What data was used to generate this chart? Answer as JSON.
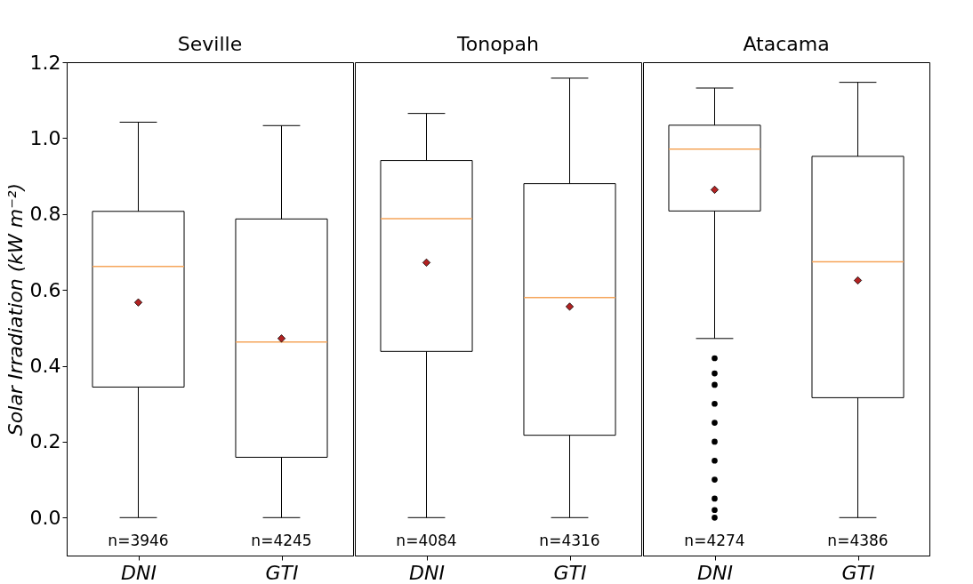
{
  "chart_data": [
    {
      "type": "box",
      "title": "Seville",
      "ylabel": "Solar Irradiation (kW m⁻²)",
      "categories": [
        "DNI",
        "GTI"
      ],
      "boxes": [
        {
          "low": 0,
          "q1": 0.344,
          "median": 0.662,
          "q3": 0.807,
          "high": 1.042,
          "mean": 0.567
        },
        {
          "low": 0,
          "q1": 0.159,
          "median": 0.463,
          "q3": 0.787,
          "high": 1.033,
          "mean": 0.472
        }
      ],
      "ylim": [
        -0.1,
        1.2
      ],
      "yticks": [
        {
          "value": 0,
          "label": "0.0"
        },
        {
          "value": 0.2,
          "label": "0.2"
        },
        {
          "value": 0.4,
          "label": "0.4"
        },
        {
          "value": 0.6,
          "label": "0.6"
        },
        {
          "value": 0.8,
          "label": "0.8"
        },
        {
          "value": 1.0,
          "label": "1.0"
        },
        {
          "value": 1.2,
          "label": "1.2"
        }
      ],
      "annotations": [
        "n=3946",
        "n=4245"
      ]
    },
    {
      "type": "box",
      "title": "Tonopah",
      "categories": [
        "DNI",
        "GTI"
      ],
      "boxes": [
        {
          "low": 0,
          "q1": 0.438,
          "median": 0.788,
          "q3": 0.941,
          "high": 1.065,
          "mean": 0.672
        },
        {
          "low": 0,
          "q1": 0.217,
          "median": 0.58,
          "q3": 0.88,
          "high": 1.158,
          "mean": 0.556
        }
      ],
      "ylim": [
        -0.1,
        1.2
      ],
      "tick_labels": "x",
      "annotations": [
        "n=4084",
        "n=4316"
      ]
    },
    {
      "type": "box",
      "title": "Atacama",
      "categories": [
        "DNI",
        "GTI"
      ],
      "boxes": [
        {
          "low": 0.472,
          "q1": 0.808,
          "median": 0.971,
          "q3": 1.034,
          "high": 1.132,
          "mean": 0.864,
          "outliers": [
            0.42,
            0.38,
            0.35,
            0.3,
            0.25,
            0.2,
            0.15,
            0.1,
            0.05,
            0.02,
            0
          ]
        },
        {
          "low": 0,
          "q1": 0.316,
          "median": 0.674,
          "q3": 0.952,
          "high": 1.147,
          "mean": 0.625
        }
      ],
      "ylim": [
        -0.1,
        1.2
      ],
      "tick_labels": "x",
      "annotations": [
        "n=4274",
        "n=4386"
      ]
    }
  ]
}
